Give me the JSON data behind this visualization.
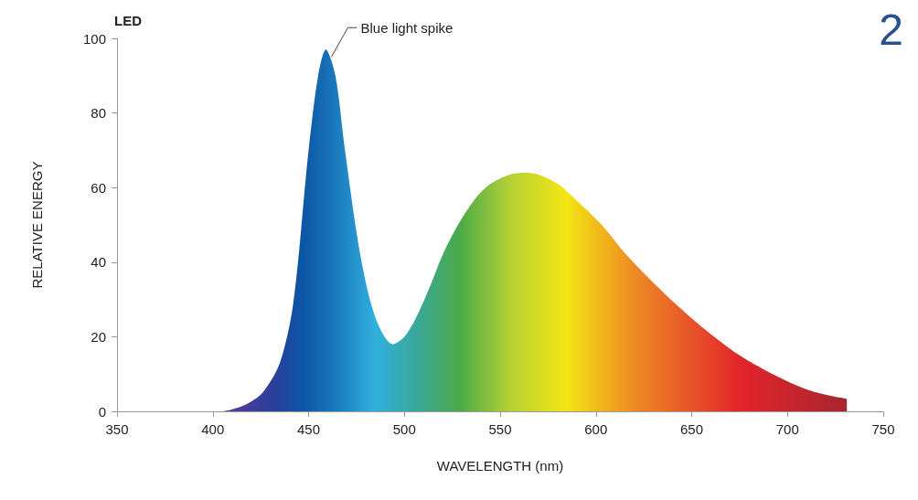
{
  "chart_data": {
    "type": "area",
    "title": "LED",
    "xlabel": "WAVELENGTH (nm)",
    "ylabel": "RELATIVE ENERGY",
    "annotations": [
      {
        "text": "Blue light spike",
        "x": 460,
        "y": 97
      },
      "2"
    ],
    "series": [
      {
        "x": [
          405,
          410,
          418,
          426,
          435,
          442,
          450,
          455,
          459,
          464,
          469,
          477,
          485,
          494,
          500,
          506,
          513,
          520,
          528,
          537,
          545,
          555,
          563,
          570,
          580,
          591,
          603,
          615,
          627,
          639,
          651,
          663,
          675,
          687,
          699,
          711,
          722,
          731
        ],
        "values": [
          0,
          0.5,
          2,
          5,
          13,
          29,
          70,
          90,
          97,
          90,
          70,
          42,
          25,
          18,
          20,
          25,
          33,
          42,
          50,
          57,
          61,
          63.5,
          64,
          63.5,
          61,
          56,
          50,
          42.5,
          36,
          30,
          24.5,
          19.5,
          15,
          11.4,
          8.3,
          5.7,
          4.2,
          3.3
        ]
      }
    ],
    "xlim": [
      350,
      750
    ],
    "xticks": [
      350,
      400,
      450,
      500,
      550,
      600,
      650,
      700,
      750
    ],
    "ylim": [
      0,
      100
    ],
    "yticks": [
      0,
      20,
      40,
      60,
      80,
      100
    ],
    "grid": false
  }
}
